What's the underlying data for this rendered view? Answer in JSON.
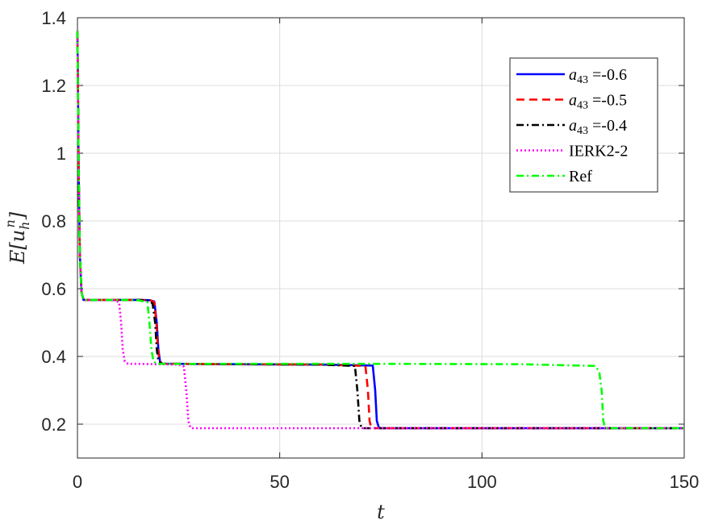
{
  "chart_data": {
    "type": "line",
    "title": "",
    "xlabel": "t",
    "ylabel": "E[u_h^n]",
    "ylabel_parts": {
      "base": "E[u",
      "sub": "h",
      "sup": "n",
      "close": "]"
    },
    "xlim": [
      0,
      150
    ],
    "ylim": [
      0.1,
      1.4
    ],
    "xticks": [
      0,
      50,
      100,
      150
    ],
    "yticks": [
      0.2,
      0.4,
      0.6,
      0.8,
      1.0,
      1.2,
      1.4
    ],
    "xtick_labels": [
      "0",
      "50",
      "100",
      "150"
    ],
    "ytick_labels": [
      "0.2",
      "0.4",
      "0.6",
      "0.8",
      "1",
      "1.2",
      "1.4"
    ],
    "grid": true,
    "legend_position": "top-right",
    "series": [
      {
        "name": "a43 =-0.6",
        "legend": {
          "var": "a",
          "sub": "43",
          "suffix": " =-0.6"
        },
        "color": "#0000ff",
        "dash": "solid",
        "x": [
          0,
          0.3,
          0.6,
          1,
          1.5,
          5,
          10,
          15,
          18,
          19,
          19.6,
          20,
          20.4,
          21,
          25,
          40,
          60,
          73,
          73.6,
          74,
          74.5,
          75,
          80,
          100,
          120,
          140,
          150
        ],
        "y": [
          1.36,
          0.95,
          0.7,
          0.59,
          0.567,
          0.567,
          0.567,
          0.567,
          0.566,
          0.562,
          0.5,
          0.42,
          0.385,
          0.378,
          0.378,
          0.377,
          0.376,
          0.373,
          0.3,
          0.21,
          0.19,
          0.188,
          0.188,
          0.188,
          0.188,
          0.188,
          0.188
        ]
      },
      {
        "name": "a43 =-0.5",
        "legend": {
          "var": "a",
          "sub": "43",
          "suffix": " =-0.5"
        },
        "color": "#ff0000",
        "dash": "dashed",
        "x": [
          0,
          0.3,
          0.6,
          1,
          1.5,
          5,
          10,
          15,
          18,
          19,
          19.5,
          19.9,
          20.3,
          21,
          25,
          40,
          60,
          71.2,
          71.8,
          72.2,
          72.6,
          73,
          80,
          100,
          120,
          140,
          150
        ],
        "y": [
          1.36,
          0.95,
          0.7,
          0.59,
          0.567,
          0.567,
          0.567,
          0.567,
          0.566,
          0.56,
          0.5,
          0.42,
          0.385,
          0.378,
          0.378,
          0.377,
          0.376,
          0.372,
          0.3,
          0.21,
          0.19,
          0.188,
          0.188,
          0.188,
          0.188,
          0.188,
          0.188
        ]
      },
      {
        "name": "a43 =-0.4",
        "legend": {
          "var": "a",
          "sub": "43",
          "suffix": " =-0.4"
        },
        "color": "#000000",
        "dash": "dashdot",
        "x": [
          0,
          0.3,
          0.6,
          1,
          1.5,
          5,
          10,
          15,
          18,
          18.6,
          19.2,
          19.6,
          20,
          21,
          25,
          40,
          60,
          68.6,
          69.2,
          69.7,
          70.2,
          70.6,
          80,
          100,
          120,
          140,
          150
        ],
        "y": [
          1.36,
          0.95,
          0.7,
          0.59,
          0.567,
          0.567,
          0.567,
          0.567,
          0.564,
          0.555,
          0.5,
          0.42,
          0.385,
          0.378,
          0.378,
          0.377,
          0.376,
          0.372,
          0.3,
          0.21,
          0.19,
          0.188,
          0.188,
          0.188,
          0.188,
          0.188,
          0.188
        ]
      },
      {
        "name": "IERK2-2",
        "legend": {
          "text": "IERK2-2"
        },
        "color": "#ff00ff",
        "dash": "dotted",
        "x": [
          0,
          0.3,
          0.6,
          1,
          1.5,
          5,
          9,
          10.3,
          10.8,
          11.2,
          11.7,
          12.5,
          15,
          20,
          25,
          26.3,
          26.9,
          27.4,
          27.9,
          28.5,
          35,
          60,
          100,
          150
        ],
        "y": [
          1.36,
          0.95,
          0.7,
          0.59,
          0.567,
          0.567,
          0.566,
          0.56,
          0.5,
          0.42,
          0.385,
          0.378,
          0.378,
          0.377,
          0.376,
          0.37,
          0.3,
          0.21,
          0.19,
          0.188,
          0.188,
          0.188,
          0.188,
          0.188
        ]
      },
      {
        "name": "Ref",
        "legend": {
          "text": "Ref"
        },
        "color": "#00ff00",
        "dash": "dashdot",
        "x": [
          0,
          0.3,
          0.6,
          1,
          1.5,
          5,
          10,
          15,
          17.3,
          17.8,
          18.3,
          18.8,
          19.5,
          25,
          50,
          80,
          110,
          128,
          129,
          129.6,
          130,
          130.4,
          131,
          140,
          150
        ],
        "y": [
          1.36,
          0.95,
          0.7,
          0.59,
          0.567,
          0.567,
          0.567,
          0.566,
          0.56,
          0.5,
          0.42,
          0.385,
          0.378,
          0.378,
          0.378,
          0.378,
          0.377,
          0.372,
          0.355,
          0.3,
          0.21,
          0.19,
          0.188,
          0.188,
          0.188
        ]
      }
    ]
  }
}
